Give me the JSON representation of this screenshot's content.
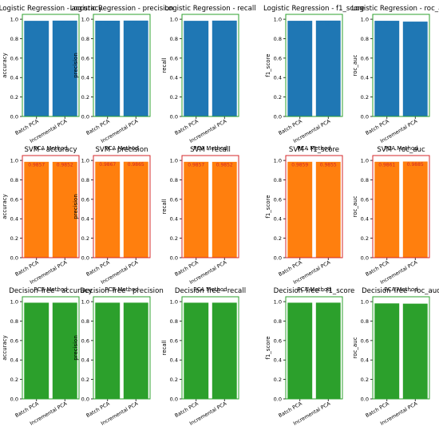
{
  "figure": {
    "background": "#ffffff"
  },
  "chart_data": [
    {
      "type": "bar",
      "title": "Logistic Regression - accuracy",
      "xlabel": "PCA Method",
      "ylabel": "accuracy",
      "categories": [
        "Batch PCA",
        "Incremental PCA"
      ],
      "values": [
        0.9834,
        0.9856
      ],
      "labels": [
        "0.9834",
        "0.9856"
      ],
      "ylim": [
        0,
        1.05
      ],
      "yticks": [
        "0.0",
        "0.2",
        "0.4",
        "0.6",
        "0.8",
        "1.0"
      ],
      "color": "#1f77b4",
      "frame": "#2ca02c",
      "label_color": "#1f77b4"
    },
    {
      "type": "bar",
      "title": "Logistic Regression - precision",
      "xlabel": "PCA Method",
      "ylabel": "precision",
      "categories": [
        "Batch PCA",
        "Incremental PCA"
      ],
      "values": [
        0.9847,
        0.9859
      ],
      "labels": [
        "0.9847",
        "0.9859"
      ],
      "ylim": [
        0,
        1.05
      ],
      "yticks": [
        "0.0",
        "0.2",
        "0.4",
        "0.6",
        "0.8",
        "1.0"
      ],
      "color": "#1f77b4",
      "frame": "#2ca02c",
      "label_color": "#1f77b4"
    },
    {
      "type": "bar",
      "title": "Logistic Regression - recall",
      "xlabel": "PCA Method",
      "ylabel": "recall",
      "categories": [
        "Batch PCA",
        "Incremental PCA"
      ],
      "values": [
        0.9834,
        0.9856
      ],
      "labels": [
        "0.9834",
        "0.9856"
      ],
      "ylim": [
        0,
        1.05
      ],
      "yticks": [
        "0.0",
        "0.2",
        "0.4",
        "0.6",
        "0.8",
        "1.0"
      ],
      "color": "#1f77b4",
      "frame": "#2ca02c",
      "label_color": "#1f77b4"
    },
    {
      "type": "bar",
      "title": "Logistic Regression - f1_score",
      "xlabel": "PCA Method",
      "ylabel": "f1_score",
      "categories": [
        "Batch PCA",
        "Incremental PCA"
      ],
      "values": [
        0.9837,
        0.9857
      ],
      "labels": [
        "0.9837",
        "0.9857"
      ],
      "ylim": [
        0,
        1.05
      ],
      "yticks": [
        "0.0",
        "0.2",
        "0.4",
        "0.6",
        "0.8",
        "1.0"
      ],
      "color": "#1f77b4",
      "frame": "#2ca02c",
      "label_color": "#1f77b4"
    },
    {
      "type": "bar",
      "title": "Logistic Regression - roc_auc",
      "xlabel": "PCA Method",
      "ylabel": "roc_auc",
      "categories": [
        "Batch PCA",
        "Incremental PCA"
      ],
      "values": [
        0.9838,
        0.9755
      ],
      "labels": [
        "0.9838",
        "0.9755"
      ],
      "ylim": [
        0,
        1.05
      ],
      "yticks": [
        "0.0",
        "0.2",
        "0.4",
        "0.6",
        "0.8",
        "1.0"
      ],
      "color": "#1f77b4",
      "frame": "#2ca02c",
      "label_color": "#1f77b4"
    },
    {
      "type": "bar",
      "title": "SVM - accuracy",
      "xlabel": "PCA Method",
      "ylabel": "accuracy",
      "categories": [
        "Batch PCA",
        "Incremental PCA"
      ],
      "values": [
        0.9857,
        0.9852
      ],
      "labels": [
        "0.9857",
        "0.9852"
      ],
      "ylim": [
        0,
        1.05
      ],
      "yticks": [
        "0.0",
        "0.2",
        "0.4",
        "0.6",
        "0.8",
        "1.0"
      ],
      "color": "#ff7f0e",
      "frame": "#d62728",
      "label_color": "#d62728"
    },
    {
      "type": "bar",
      "title": "SVM - precision",
      "xlabel": "PCA Method",
      "ylabel": "precision",
      "categories": [
        "Batch PCA",
        "Incremental PCA"
      ],
      "values": [
        0.9867,
        0.9865
      ],
      "labels": [
        "0.9867",
        "0.9865"
      ],
      "ylim": [
        0,
        1.05
      ],
      "yticks": [
        "0.0",
        "0.2",
        "0.4",
        "0.6",
        "0.8",
        "1.0"
      ],
      "color": "#ff7f0e",
      "frame": "#d62728",
      "label_color": "#d62728"
    },
    {
      "type": "bar",
      "title": "SVM - recall",
      "xlabel": "PCA Method",
      "ylabel": "recall",
      "categories": [
        "Batch PCA",
        "Incremental PCA"
      ],
      "values": [
        0.9857,
        0.9852
      ],
      "labels": [
        "0.9857",
        "0.9852"
      ],
      "ylim": [
        0,
        1.05
      ],
      "yticks": [
        "0.0",
        "0.2",
        "0.4",
        "0.6",
        "0.8",
        "1.0"
      ],
      "color": "#ff7f0e",
      "frame": "#d62728",
      "label_color": "#d62728"
    },
    {
      "type": "bar",
      "title": "SVM - f1_score",
      "xlabel": "PCA Method",
      "ylabel": "f1_score",
      "categories": [
        "Batch PCA",
        "Incremental PCA"
      ],
      "values": [
        0.9859,
        0.9855
      ],
      "labels": [
        "0.9859",
        "0.9855"
      ],
      "ylim": [
        0,
        1.05
      ],
      "yticks": [
        "0.0",
        "0.2",
        "0.4",
        "0.6",
        "0.8",
        "1.0"
      ],
      "color": "#ff7f0e",
      "frame": "#d62728",
      "label_color": "#d62728"
    },
    {
      "type": "bar",
      "title": "SVM - roc_auc",
      "xlabel": "PCA Method",
      "ylabel": "roc_auc",
      "categories": [
        "Batch PCA",
        "Incremental PCA"
      ],
      "values": [
        0.9861,
        0.9885
      ],
      "labels": [
        "0.9861",
        "0.9885"
      ],
      "ylim": [
        0,
        1.05
      ],
      "yticks": [
        "0.0",
        "0.2",
        "0.4",
        "0.6",
        "0.8",
        "1.0"
      ],
      "color": "#ff7f0e",
      "frame": "#d62728",
      "label_color": "#d62728"
    },
    {
      "type": "bar",
      "title": "Decision Tree - accuracy",
      "xlabel": "PCA Method",
      "ylabel": "accuracy",
      "categories": [
        "Batch PCA",
        "Incremental PCA"
      ],
      "values": [
        0.9889,
        0.9892
      ],
      "labels": [
        "0.9889",
        "0.9892"
      ],
      "ylim": [
        0,
        1.05
      ],
      "yticks": [
        "0.0",
        "0.2",
        "0.4",
        "0.6",
        "0.8",
        "1.0"
      ],
      "color": "#2ca02c",
      "frame": "#2ca02c",
      "label_color": "#2ca02c"
    },
    {
      "type": "bar",
      "title": "Decision Tree - precision",
      "xlabel": "PCA Method",
      "ylabel": "precision",
      "categories": [
        "Batch PCA",
        "Incremental PCA"
      ],
      "values": [
        0.9892,
        0.9893
      ],
      "labels": [
        "0.9892",
        "0.9893"
      ],
      "ylim": [
        0,
        1.05
      ],
      "yticks": [
        "0.0",
        "0.2",
        "0.4",
        "0.6",
        "0.8",
        "1.0"
      ],
      "color": "#2ca02c",
      "frame": "#2ca02c",
      "label_color": "#2ca02c"
    },
    {
      "type": "bar",
      "title": "Decision Tree - recall",
      "xlabel": "PCA Method",
      "ylabel": "recall",
      "categories": [
        "Batch PCA",
        "Incremental PCA"
      ],
      "values": [
        0.9889,
        0.9892
      ],
      "labels": [
        "0.9889",
        "0.9892"
      ],
      "ylim": [
        0,
        1.05
      ],
      "yticks": [
        "0.0",
        "0.2",
        "0.4",
        "0.6",
        "0.8",
        "1.0"
      ],
      "color": "#2ca02c",
      "frame": "#2ca02c",
      "label_color": "#2ca02c"
    },
    {
      "type": "bar",
      "title": "Decision Tree - f1_score",
      "xlabel": "PCA Method",
      "ylabel": "f1_score",
      "categories": [
        "Batch PCA",
        "Incremental PCA"
      ],
      "values": [
        0.989,
        0.9893
      ],
      "labels": [
        "0.989",
        "0.9893"
      ],
      "ylim": [
        0,
        1.05
      ],
      "yticks": [
        "0.0",
        "0.2",
        "0.4",
        "0.6",
        "0.8",
        "1.0"
      ],
      "color": "#2ca02c",
      "frame": "#2ca02c",
      "label_color": "#2ca02c"
    },
    {
      "type": "bar",
      "title": "Decision Tree - roc_auc",
      "xlabel": "PCA Method",
      "ylabel": "roc_auc",
      "categories": [
        "Batch PCA",
        "Incremental PCA"
      ],
      "values": [
        0.9818,
        0.9791
      ],
      "labels": [
        "0.9818",
        "0.9791"
      ],
      "ylim": [
        0,
        1.05
      ],
      "yticks": [
        "0.0",
        "0.2",
        "0.4",
        "0.6",
        "0.8",
        "1.0"
      ],
      "color": "#2ca02c",
      "frame": "#2ca02c",
      "label_color": "#2ca02c"
    }
  ]
}
